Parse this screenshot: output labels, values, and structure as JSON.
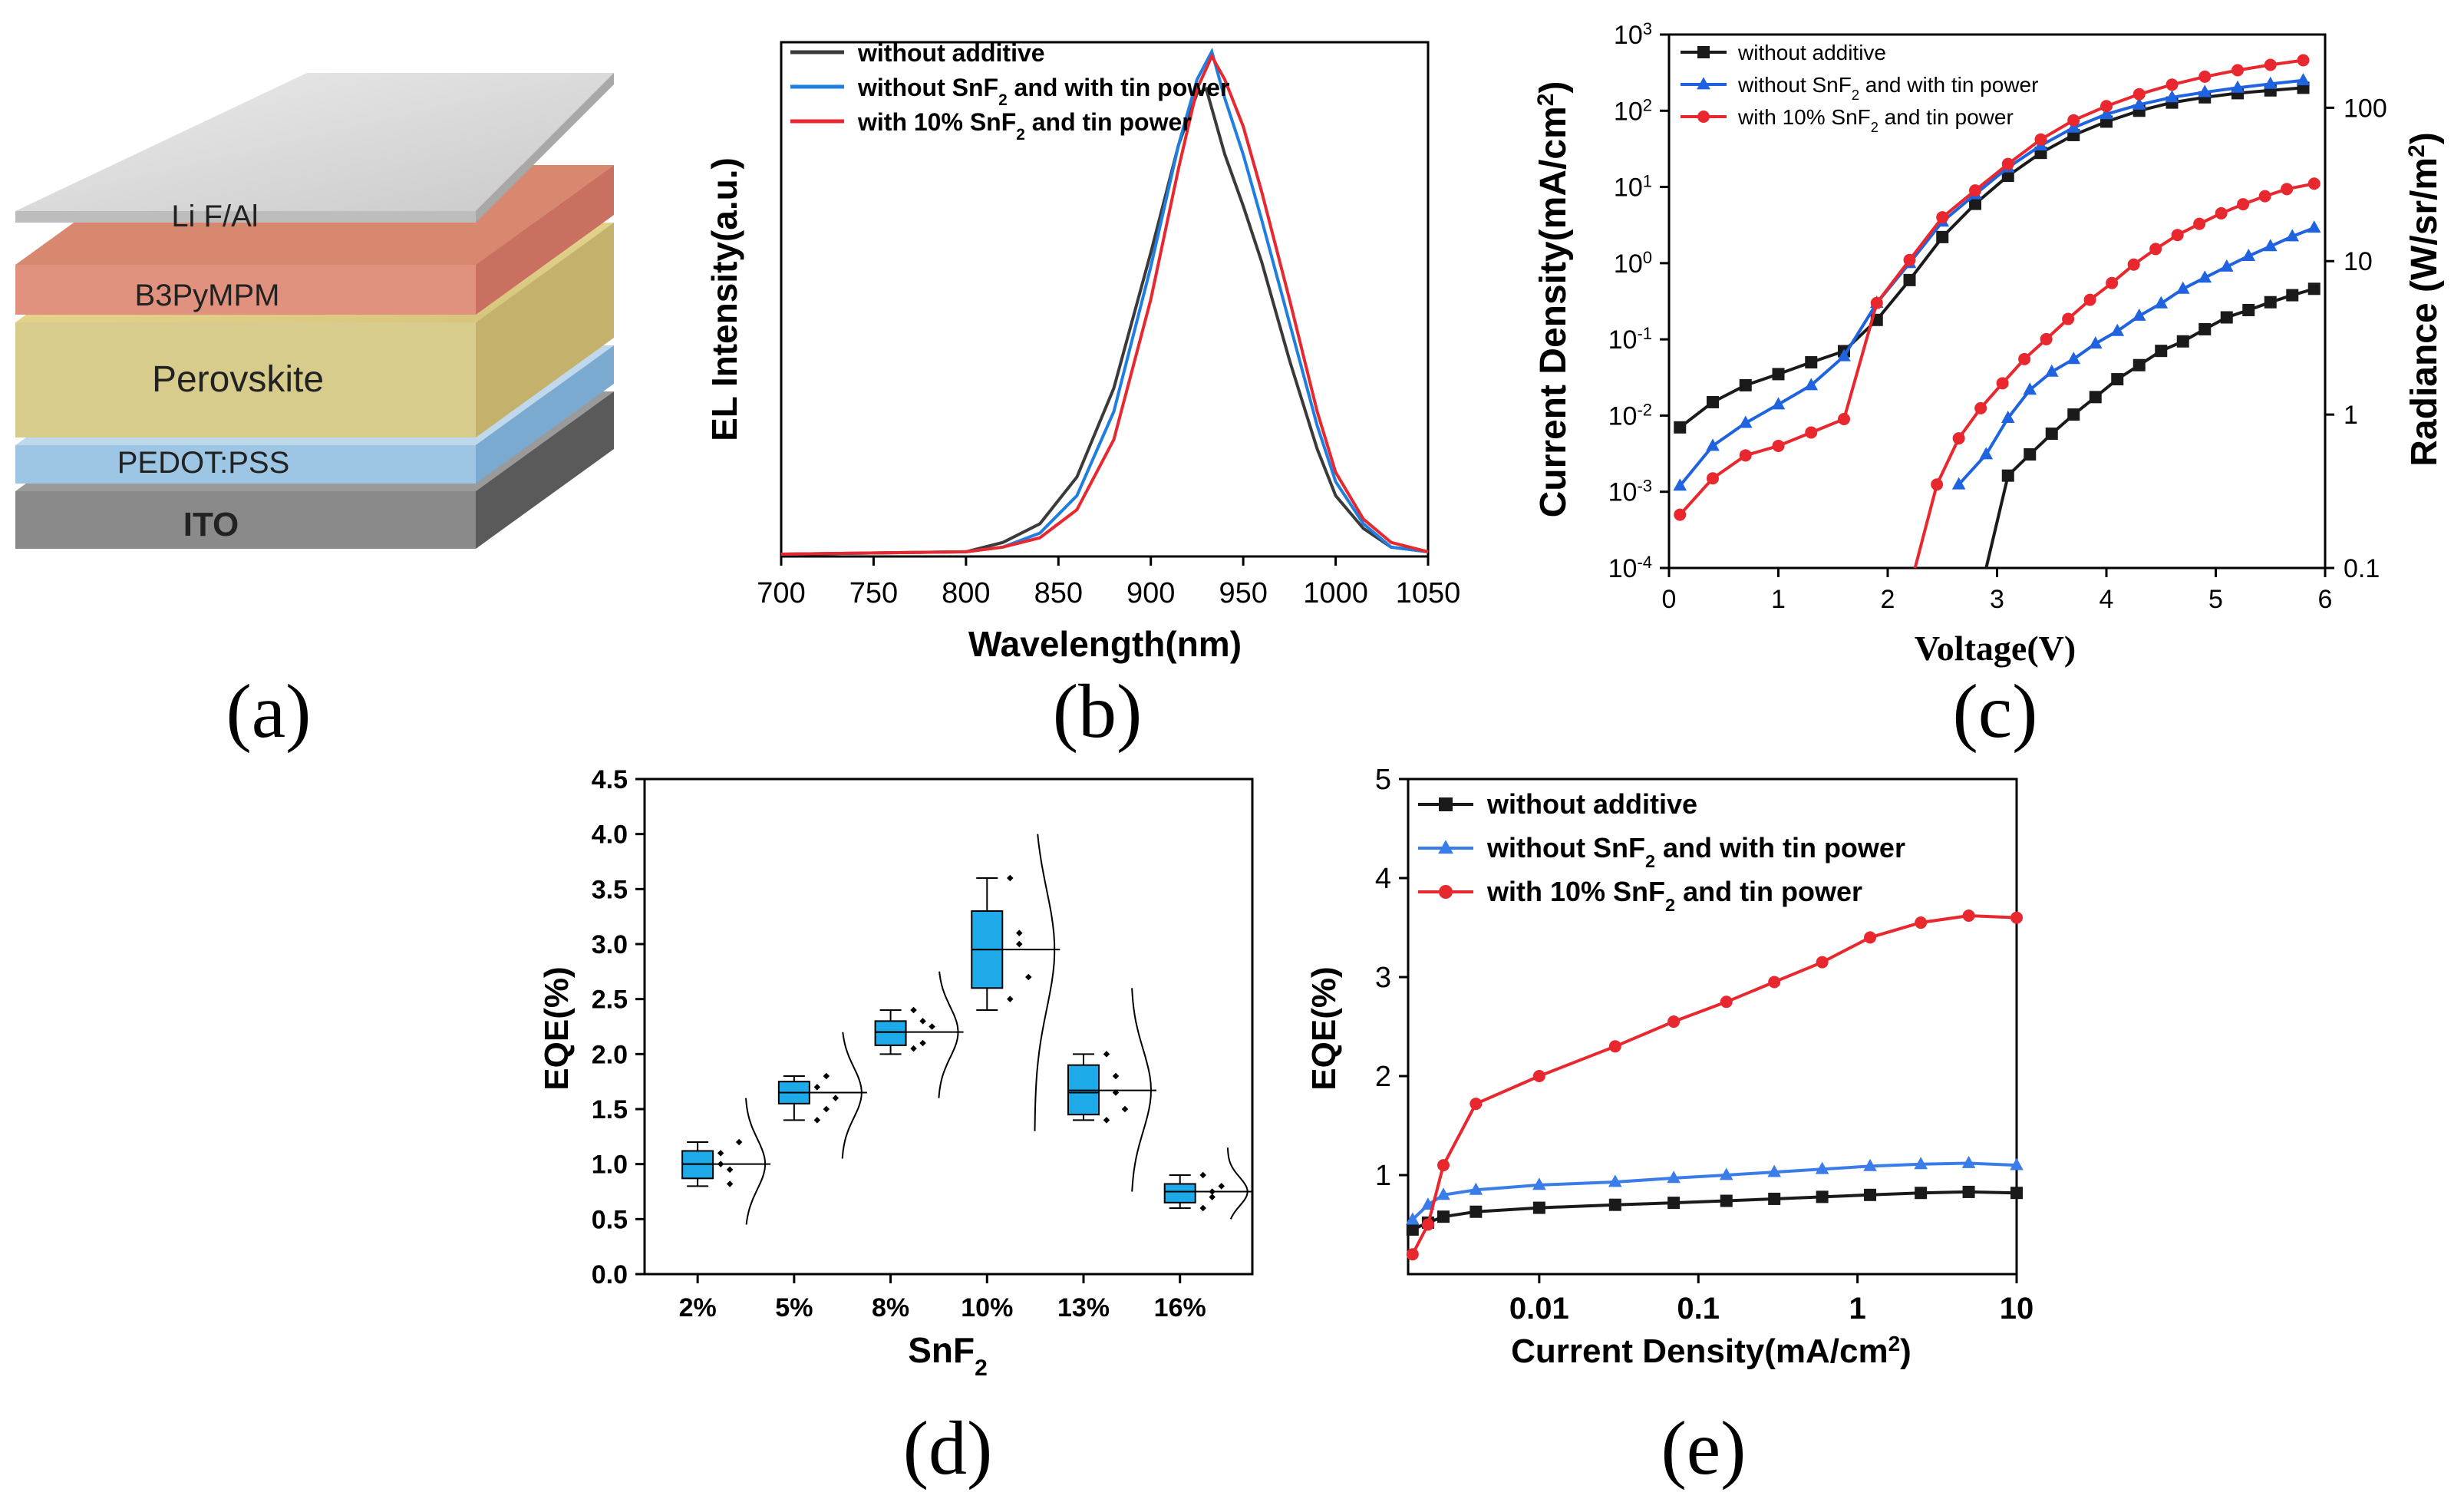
{
  "figure": {
    "panel_labels": [
      "(a)",
      "(b)",
      "(c)",
      "(d)",
      "(e)"
    ]
  },
  "panel_a": {
    "layers": [
      "Li F/Al",
      "B3PyMPM",
      "Perovskite",
      "PEDOT:PSS",
      "ITO"
    ]
  },
  "chart_data": [
    {
      "panel": "b",
      "type": "line",
      "title": "",
      "xlabel": "Wavelength(nm)",
      "ylabel": "EL Intensity(a.u.)",
      "xlim": [
        700,
        1050
      ],
      "ylim": [
        0,
        1.1
      ],
      "xticks": [
        700,
        750,
        800,
        850,
        900,
        950,
        1000,
        1050
      ],
      "yticks_shown": false,
      "legend_position": "top-left",
      "series": [
        {
          "name": "without additive",
          "color": "#3a3a3a",
          "x": [
            700,
            800,
            820,
            840,
            860,
            880,
            900,
            915,
            925,
            930,
            940,
            950,
            960,
            975,
            990,
            1000,
            1015,
            1030,
            1050
          ],
          "y": [
            0.005,
            0.01,
            0.03,
            0.07,
            0.17,
            0.36,
            0.65,
            0.88,
            0.99,
            1.0,
            0.86,
            0.75,
            0.63,
            0.42,
            0.23,
            0.13,
            0.06,
            0.02,
            0.01
          ]
        },
        {
          "name": "without SnF2 and with tin power",
          "color": "#1f7fe0",
          "x": [
            700,
            800,
            820,
            840,
            860,
            880,
            900,
            915,
            925,
            933,
            940,
            950,
            960,
            975,
            990,
            1000,
            1015,
            1030,
            1050
          ],
          "y": [
            0.005,
            0.01,
            0.02,
            0.05,
            0.13,
            0.31,
            0.62,
            0.88,
            1.02,
            1.08,
            0.98,
            0.86,
            0.72,
            0.5,
            0.28,
            0.16,
            0.07,
            0.02,
            0.01
          ]
        },
        {
          "name": "with 10% SnF2 and tin power",
          "color": "#e8282e",
          "x": [
            700,
            800,
            820,
            840,
            860,
            880,
            900,
            915,
            925,
            933,
            940,
            950,
            960,
            975,
            990,
            1000,
            1015,
            1030,
            1050
          ],
          "y": [
            0.005,
            0.01,
            0.02,
            0.04,
            0.1,
            0.25,
            0.55,
            0.83,
            1.0,
            1.07,
            1.02,
            0.92,
            0.78,
            0.55,
            0.31,
            0.18,
            0.08,
            0.03,
            0.01
          ]
        }
      ]
    },
    {
      "panel": "c",
      "type": "line",
      "title": "",
      "xlabel": "Voltage(V)",
      "ylabel": "Current Density(mA/cm2)",
      "y2label": "Radiance (W/sr/m2)",
      "xlim": [
        0,
        6
      ],
      "ylim_log_exponent": [
        -4,
        3
      ],
      "y2lim": [
        0.1,
        300
      ],
      "xticks": [
        0,
        1,
        2,
        3,
        4,
        5,
        6
      ],
      "yticks": [
        "10-4",
        "10-3",
        "10-2",
        "10-1",
        "100",
        "101",
        "102",
        "103"
      ],
      "y2ticks": [
        "0.1",
        "1",
        "10",
        "100"
      ],
      "legend_position": "top-left",
      "series": [
        {
          "name": "without additive",
          "color": "#1a1a1a",
          "axis": "left",
          "marker": "square",
          "x": [
            0.1,
            0.4,
            0.7,
            1.0,
            1.3,
            1.6,
            1.9,
            2.2,
            2.5,
            2.8,
            3.1,
            3.4,
            3.7,
            4.0,
            4.3,
            4.6,
            4.9,
            5.2,
            5.5,
            5.8
          ],
          "y": [
            0.007,
            0.015,
            0.025,
            0.035,
            0.05,
            0.07,
            0.18,
            0.6,
            2.2,
            6,
            14,
            28,
            48,
            72,
            100,
            128,
            150,
            170,
            185,
            200
          ]
        },
        {
          "name": "without SnF2 and with tin power",
          "color": "#1f63e0",
          "axis": "left",
          "marker": "triangle",
          "x": [
            0.1,
            0.4,
            0.7,
            1.0,
            1.3,
            1.6,
            1.9,
            2.2,
            2.5,
            2.8,
            3.1,
            3.4,
            3.7,
            4.0,
            4.3,
            4.6,
            4.9,
            5.2,
            5.5,
            5.8
          ],
          "y": [
            0.0012,
            0.004,
            0.008,
            0.014,
            0.025,
            0.06,
            0.3,
            1.0,
            3.5,
            8,
            18,
            35,
            60,
            90,
            120,
            150,
            175,
            200,
            225,
            250
          ]
        },
        {
          "name": "with 10% SnF2 and tin power",
          "color": "#e8282e",
          "axis": "left",
          "marker": "circle",
          "x": [
            0.1,
            0.4,
            0.7,
            1.0,
            1.3,
            1.6,
            1.9,
            2.2,
            2.5,
            2.8,
            3.1,
            3.4,
            3.7,
            4.0,
            4.3,
            4.6,
            4.9,
            5.2,
            5.5,
            5.8
          ],
          "y": [
            0.0005,
            0.0015,
            0.003,
            0.004,
            0.006,
            0.009,
            0.3,
            1.1,
            4,
            9,
            20,
            42,
            75,
            115,
            165,
            220,
            280,
            340,
            400,
            460
          ]
        },
        {
          "name": "without additive (radiance)",
          "color": "#1a1a1a",
          "axis": "right",
          "marker": "square",
          "show_in_legend": false,
          "x": [
            2.9,
            3.1,
            3.3,
            3.5,
            3.7,
            3.9,
            4.1,
            4.3,
            4.5,
            4.7,
            4.9,
            5.1,
            5.3,
            5.5,
            5.7,
            5.9
          ],
          "y": [
            0.1,
            0.4,
            0.55,
            0.75,
            1.0,
            1.3,
            1.7,
            2.1,
            2.6,
            3.0,
            3.6,
            4.3,
            4.8,
            5.4,
            6.0,
            6.6
          ]
        },
        {
          "name": "without SnF2 and with tin power (radiance)",
          "color": "#1f63e0",
          "axis": "right",
          "marker": "triangle",
          "show_in_legend": false,
          "x": [
            2.65,
            2.9,
            3.1,
            3.3,
            3.5,
            3.7,
            3.9,
            4.1,
            4.3,
            4.5,
            4.7,
            4.9,
            5.1,
            5.3,
            5.5,
            5.7,
            5.9
          ],
          "y": [
            0.35,
            0.55,
            0.95,
            1.45,
            1.9,
            2.3,
            2.9,
            3.5,
            4.4,
            5.3,
            6.6,
            7.8,
            9.2,
            10.8,
            12.5,
            14.5,
            16.5
          ]
        },
        {
          "name": "with 10% SnF2 and tin power (radiance)",
          "color": "#e8282e",
          "axis": "right",
          "marker": "circle",
          "show_in_legend": false,
          "x": [
            2.25,
            2.45,
            2.65,
            2.85,
            3.05,
            3.25,
            3.45,
            3.65,
            3.85,
            4.05,
            4.25,
            4.45,
            4.65,
            4.85,
            5.05,
            5.25,
            5.45,
            5.65,
            5.9
          ],
          "y": [
            0.1,
            0.35,
            0.7,
            1.1,
            1.6,
            2.3,
            3.1,
            4.2,
            5.6,
            7.2,
            9.5,
            12,
            14.8,
            17.5,
            20.5,
            23.5,
            26.5,
            29.5,
            32
          ]
        }
      ]
    },
    {
      "panel": "d",
      "type": "box",
      "title": "",
      "xlabel": "SnF2",
      "ylabel": "EQE(%)",
      "ylim": [
        0,
        4.5
      ],
      "yticks": [
        "0.0",
        "0.5",
        "1.0",
        "1.5",
        "2.0",
        "2.5",
        "3.0",
        "3.5",
        "4.0",
        "4.5"
      ],
      "categories": [
        "2%",
        "5%",
        "8%",
        "10%",
        "13%",
        "16%"
      ],
      "box_color": "#1eaae8",
      "stats": [
        {
          "min": 0.8,
          "q1": 0.87,
          "median": 1.0,
          "q3": 1.12,
          "max": 1.2,
          "mean": 1.0,
          "points": [
            1.1,
            0.95,
            1.2,
            1.0,
            0.82
          ],
          "curve_range": [
            0.45,
            1.6
          ]
        },
        {
          "min": 1.4,
          "q1": 1.55,
          "median": 1.65,
          "q3": 1.75,
          "max": 1.8,
          "mean": 1.65,
          "points": [
            1.7,
            1.5,
            1.6,
            1.4,
            1.8
          ],
          "curve_range": [
            1.05,
            2.2
          ]
        },
        {
          "min": 2.0,
          "q1": 2.08,
          "median": 2.2,
          "q3": 2.3,
          "max": 2.4,
          "mean": 2.2,
          "points": [
            2.4,
            2.1,
            2.25,
            2.05,
            2.3
          ],
          "curve_range": [
            1.6,
            2.75
          ]
        },
        {
          "min": 2.4,
          "q1": 2.6,
          "median": 2.95,
          "q3": 3.3,
          "max": 3.6,
          "mean": 2.95,
          "points": [
            3.6,
            3.1,
            2.7,
            2.5,
            3.0
          ],
          "curve_range": [
            1.3,
            4.0
          ]
        },
        {
          "min": 1.4,
          "q1": 1.45,
          "median": 1.65,
          "q3": 1.9,
          "max": 2.0,
          "mean": 1.67,
          "points": [
            2.0,
            1.8,
            1.5,
            1.4,
            1.65
          ],
          "curve_range": [
            0.75,
            2.6
          ]
        },
        {
          "min": 0.6,
          "q1": 0.65,
          "median": 0.75,
          "q3": 0.82,
          "max": 0.9,
          "mean": 0.75,
          "points": [
            0.9,
            0.7,
            0.8,
            0.6,
            0.75
          ],
          "curve_range": [
            0.5,
            1.15
          ]
        }
      ]
    },
    {
      "panel": "e",
      "type": "line",
      "title": "",
      "xlabel": "Current Density(mA/cm2)",
      "ylabel": "EQE(%)",
      "x_scale": "log",
      "xlim": [
        0.0015,
        10
      ],
      "ylim": [
        0,
        5
      ],
      "xticks": [
        "0.01",
        "0.1",
        "1",
        "10"
      ],
      "yticks": [
        "1",
        "2",
        "3",
        "4",
        "5"
      ],
      "legend_position": "top-left",
      "series": [
        {
          "name": "without additive",
          "color": "#1a1a1a",
          "marker": "square",
          "x": [
            0.0016,
            0.002,
            0.0025,
            0.004,
            0.01,
            0.03,
            0.07,
            0.15,
            0.3,
            0.6,
            1.2,
            2.5,
            5,
            10
          ],
          "y": [
            0.45,
            0.52,
            0.58,
            0.63,
            0.67,
            0.7,
            0.72,
            0.74,
            0.76,
            0.78,
            0.8,
            0.82,
            0.83,
            0.82
          ]
        },
        {
          "name": "without SnF2 and with tin power",
          "color": "#3a7de8",
          "marker": "triangle",
          "x": [
            0.0016,
            0.002,
            0.0025,
            0.004,
            0.01,
            0.03,
            0.07,
            0.15,
            0.3,
            0.6,
            1.2,
            2.5,
            5,
            10
          ],
          "y": [
            0.55,
            0.7,
            0.8,
            0.85,
            0.9,
            0.93,
            0.97,
            1.0,
            1.03,
            1.06,
            1.09,
            1.11,
            1.12,
            1.1
          ]
        },
        {
          "name": "with 10% SnF2 and tin power",
          "color": "#e8282e",
          "marker": "circle",
          "x": [
            0.0016,
            0.002,
            0.0025,
            0.004,
            0.01,
            0.03,
            0.07,
            0.15,
            0.3,
            0.6,
            1.2,
            2.5,
            5,
            10
          ],
          "y": [
            0.2,
            0.5,
            1.1,
            1.72,
            2.0,
            2.3,
            2.55,
            2.75,
            2.95,
            3.15,
            3.4,
            3.55,
            3.62,
            3.6
          ]
        }
      ]
    }
  ]
}
